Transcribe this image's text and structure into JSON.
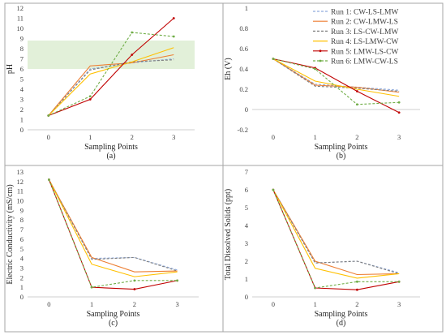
{
  "chart_data": [
    {
      "type": "line",
      "panel_label": "(a)",
      "xlabel": "Sampling Points",
      "ylabel": "pH",
      "x": [
        0,
        1,
        2,
        3
      ],
      "xlim": [
        -0.5,
        3.5
      ],
      "ylim": [
        0,
        12
      ],
      "yticks": [
        0,
        1,
        2,
        3,
        4,
        5,
        6,
        7,
        8,
        9,
        10,
        11,
        12
      ],
      "shaded_band": [
        6,
        8.8
      ],
      "grid": false,
      "series": [
        {
          "name": "Run 1: CW-LS-LMW",
          "values": [
            1.4,
            6.0,
            6.6,
            7.0
          ]
        },
        {
          "name": "Run 2: CW-LMW-LS",
          "values": [
            1.4,
            6.3,
            6.6,
            7.4
          ]
        },
        {
          "name": "Run 3: LS-CW-LMW",
          "values": [
            1.4,
            5.9,
            6.7,
            6.9
          ]
        },
        {
          "name": "Run 4: LS-LMW-CW",
          "values": [
            1.4,
            5.5,
            6.7,
            8.1
          ]
        },
        {
          "name": "Run 5: LMW-LS-CW",
          "values": [
            1.4,
            3.0,
            7.4,
            11.0
          ]
        },
        {
          "name": "Run 6: LMW-CW-LS",
          "values": [
            1.4,
            3.3,
            9.6,
            9.2
          ]
        }
      ]
    },
    {
      "type": "line",
      "panel_label": "(b)",
      "xlabel": "Sampling Points",
      "ylabel": "Eh (V)",
      "x": [
        0,
        1,
        2,
        3
      ],
      "xlim": [
        -0.5,
        3.5
      ],
      "ylim": [
        -0.2,
        1.0
      ],
      "yticks": [
        -0.2,
        0,
        0.2,
        0.4,
        0.6,
        0.8,
        1
      ],
      "legend": "top-right",
      "grid": false,
      "series": [
        {
          "name": "Run 1: CW-LS-LMW",
          "values": [
            0.5,
            0.25,
            0.22,
            0.19
          ]
        },
        {
          "name": "Run 2: CW-LMW-LS",
          "values": [
            0.5,
            0.24,
            0.22,
            0.17
          ]
        },
        {
          "name": "Run 3: LS-CW-LMW",
          "values": [
            0.5,
            0.23,
            0.21,
            0.18
          ]
        },
        {
          "name": "Run 4: LS-LMW-CW",
          "values": [
            0.5,
            0.28,
            0.2,
            0.13
          ]
        },
        {
          "name": "Run 5: LMW-LS-CW",
          "values": [
            0.5,
            0.41,
            0.18,
            -0.03
          ]
        },
        {
          "name": "Run 6: LMW-CW-LS",
          "values": [
            0.5,
            0.4,
            0.05,
            0.07
          ]
        }
      ]
    },
    {
      "type": "line",
      "panel_label": "(c)",
      "xlabel": "Sampling Points",
      "ylabel": "Electric Conductivity (mS/cm)",
      "x": [
        0,
        1,
        2,
        3
      ],
      "xlim": [
        -0.5,
        3.5
      ],
      "ylim": [
        0,
        13
      ],
      "yticks": [
        0,
        1,
        2,
        3,
        4,
        5,
        6,
        7,
        8,
        9,
        10,
        11,
        12,
        13
      ],
      "grid": false,
      "series": [
        {
          "name": "Run 1: CW-LS-LMW",
          "values": [
            12.2,
            4.0,
            4.1,
            2.8
          ]
        },
        {
          "name": "Run 2: CW-LMW-LS",
          "values": [
            12.2,
            4.1,
            2.6,
            2.7
          ]
        },
        {
          "name": "Run 3: LS-CW-LMW",
          "values": [
            12.2,
            3.9,
            4.1,
            2.7
          ]
        },
        {
          "name": "Run 4: LS-LMW-CW",
          "values": [
            12.2,
            3.4,
            2.1,
            2.6
          ]
        },
        {
          "name": "Run 5: LMW-LS-CW",
          "values": [
            12.2,
            1.0,
            0.8,
            1.7
          ]
        },
        {
          "name": "Run 6: LMW-CW-LS",
          "values": [
            12.2,
            1.0,
            1.7,
            1.7
          ]
        }
      ]
    },
    {
      "type": "line",
      "panel_label": "(d)",
      "xlabel": "Sampling Points",
      "ylabel": "Total Dissolved Solids (ppt)",
      "x": [
        0,
        1,
        2,
        3
      ],
      "xlim": [
        -0.5,
        3.5
      ],
      "ylim": [
        0,
        7
      ],
      "yticks": [
        0,
        1,
        2,
        3,
        4,
        5,
        6,
        7
      ],
      "grid": false,
      "series": [
        {
          "name": "Run 1: CW-LS-LMW",
          "values": [
            6.0,
            1.9,
            2.0,
            1.35
          ]
        },
        {
          "name": "Run 2: CW-LMW-LS",
          "values": [
            6.0,
            2.0,
            1.25,
            1.3
          ]
        },
        {
          "name": "Run 3: LS-CW-LMW",
          "values": [
            6.0,
            1.9,
            2.0,
            1.3
          ]
        },
        {
          "name": "Run 4: LS-LMW-CW",
          "values": [
            6.0,
            1.6,
            1.05,
            1.3
          ]
        },
        {
          "name": "Run 5: LMW-LS-CW",
          "values": [
            6.0,
            0.5,
            0.4,
            0.85
          ]
        },
        {
          "name": "Run 6: LMW-CW-LS",
          "values": [
            6.0,
            0.5,
            0.85,
            0.85
          ]
        }
      ]
    }
  ],
  "colors": [
    "#8faadc",
    "#ed7d31",
    "#7f7f7f",
    "#ffc000",
    "#c00000",
    "#70ad47"
  ],
  "band_color": "#e2f0d9",
  "dashed_series": [
    0,
    2,
    5
  ],
  "marker_series": [
    4,
    5
  ]
}
